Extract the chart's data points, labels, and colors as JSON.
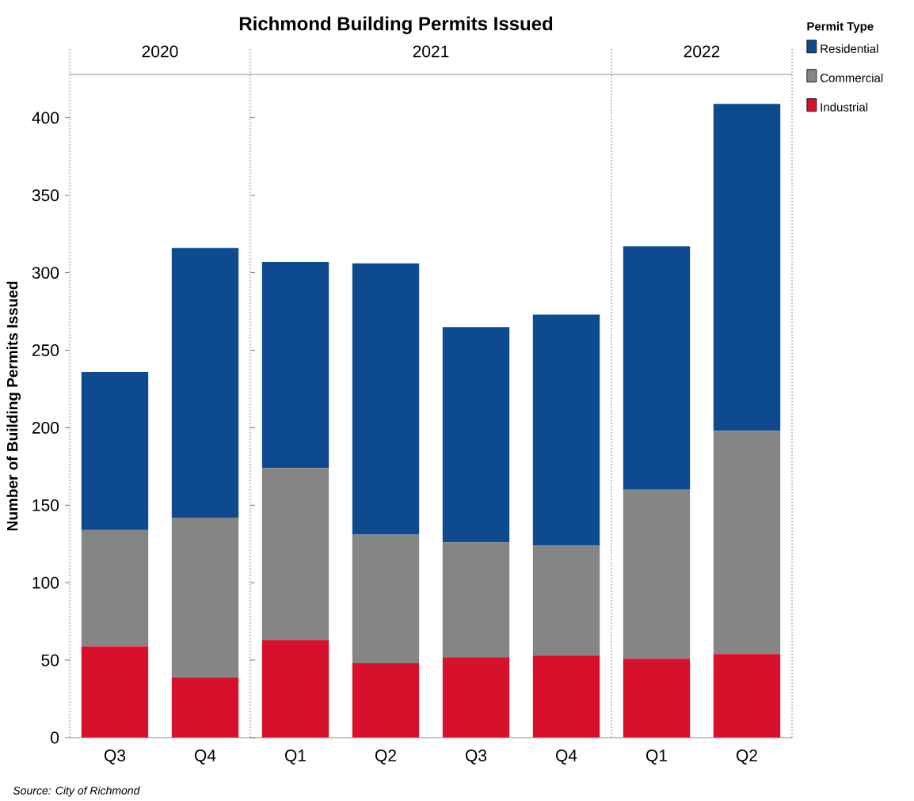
{
  "chart_data": [
    {
      "type": "bar",
      "stacked": true,
      "subtitle": "2020",
      "ylabel": "Number of Building Permits Issued",
      "annotations": [
        "Source: City of Richmond"
      ],
      "categories": [
        "Q3",
        "Q4"
      ],
      "series": [
        {
          "color": "#d7102c",
          "values": [
            59,
            39
          ]
        },
        {
          "color": "#858585",
          "values": [
            75,
            103
          ]
        },
        {
          "color": "#0e4a8f",
          "values": [
            102,
            174
          ]
        }
      ],
      "ylim": [
        0,
        428
      ],
      "yticks": [
        0,
        50,
        100,
        150,
        200,
        250,
        300,
        350,
        400
      ]
    },
    {
      "type": "bar",
      "stacked": true,
      "title": "Richmond Building Permits Issued",
      "subtitle": "2021",
      "categories": [
        "Q1",
        "Q2",
        "Q3",
        "Q4"
      ],
      "series": [
        {
          "color": "#d7102c",
          "values": [
            63,
            48,
            52,
            53
          ]
        },
        {
          "color": "#858585",
          "values": [
            111,
            83,
            74,
            71
          ]
        },
        {
          "color": "#0e4a8f",
          "values": [
            133,
            175,
            139,
            149
          ]
        }
      ],
      "ylim": [
        0,
        428
      ],
      "yticks": [
        0,
        50,
        100,
        150,
        200,
        250,
        300,
        350,
        400
      ],
      "tick_labels": "x"
    },
    {
      "type": "bar",
      "stacked": true,
      "subtitle": "2022",
      "categories": [
        "Q1",
        "Q2"
      ],
      "series": [
        {
          "name": "Industrial",
          "color": "#d7102c",
          "values": [
            51,
            54
          ]
        },
        {
          "name": "Commercial",
          "color": "#858585",
          "values": [
            109,
            144
          ]
        },
        {
          "name": "Residential",
          "color": "#0e4a8f",
          "values": [
            157,
            211
          ]
        }
      ],
      "ylim": [
        0,
        428
      ],
      "yticks": [
        0,
        50,
        100,
        150,
        200,
        250,
        300,
        350,
        400
      ],
      "tick_labels": "x",
      "legend": "right",
      "legend_title": "Permit Type"
    }
  ]
}
